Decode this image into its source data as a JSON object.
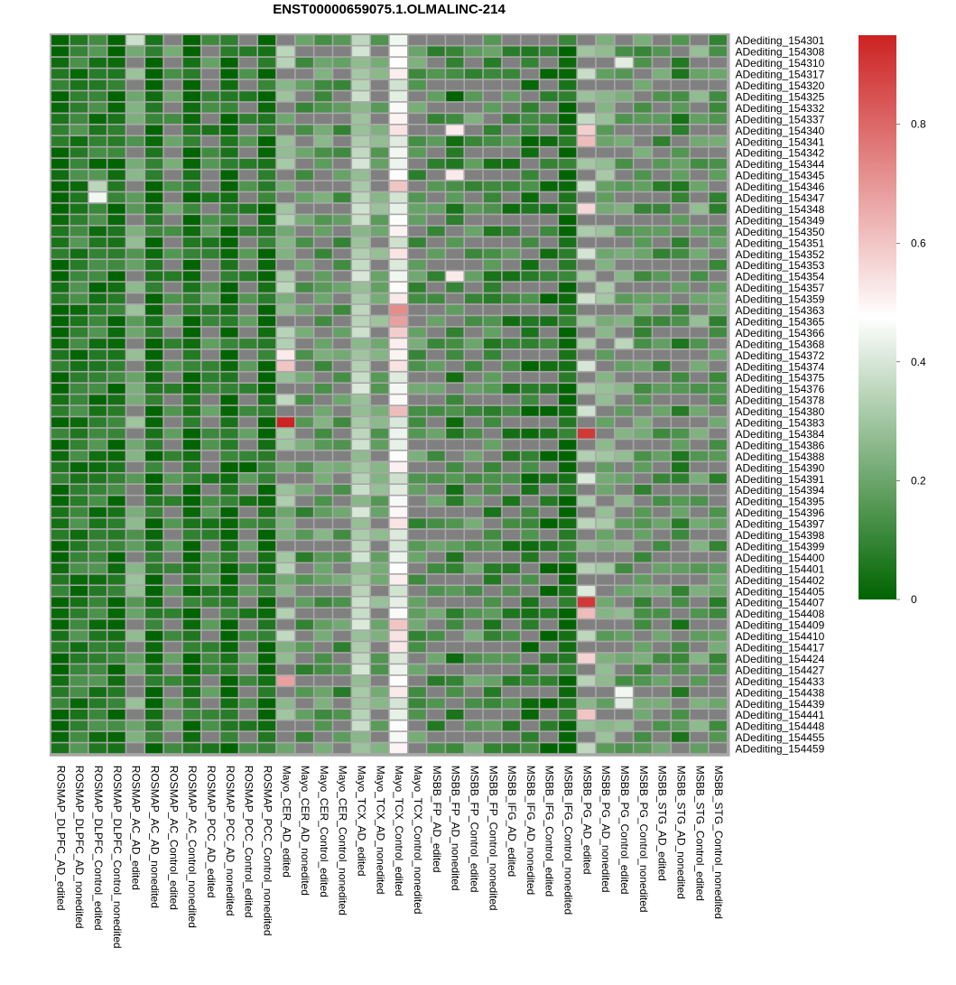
{
  "chart_data": {
    "type": "heatmap",
    "title": "ENST00000659075.1.OLMALINC-214",
    "columns": [
      "ROSMAP_DLPFC_AD_edited",
      "ROSMAP_DLPFC_AD_nonedited",
      "ROSMAP_DLPFC_Control_edited",
      "ROSMAP_DLPFC_Control_nonedited",
      "ROSMAP_AC_AD_edited",
      "ROSMAP_AC_AD_nonedited",
      "ROSMAP_AC_Control_edited",
      "ROSMAP_AC_Control_nonedited",
      "ROSMAP_PCC_AD_edited",
      "ROSMAP_PCC_AD_nonedited",
      "ROSMAP_PCC_Control_edited",
      "ROSMAP_PCC_Control_nonedited",
      "Mayo_CER_AD_edited",
      "Mayo_CER_AD_nonedited",
      "Mayo_CER_Control_edited",
      "Mayo_CER_Control_nonedited",
      "Mayo_TCX_AD_edited",
      "Mayo_TCX_AD_nonedited",
      "Mayo_TCX_Control_edited",
      "Mayo_TCX_Control_nonedited",
      "MSBB_FP_AD_edited",
      "MSBB_FP_AD_nonedited",
      "MSBB_FP_Control_edited",
      "MSBB_FP_Control_nonedited",
      "MSBB_IFG_AD_edited",
      "MSBB_IFG_AD_nonedited",
      "MSBB_IFG_Control_edited",
      "MSBB_IFG_Control_nonedited",
      "MSBB_PG_AD_edited",
      "MSBB_PG_AD_nonedited",
      "MSBB_PG_Control_edited",
      "MSBB_PG_Control_nonedited",
      "MSBB_STG_AD_edited",
      "MSBB_STG_AD_nonedited",
      "MSBB_STG_Control_edited",
      "MSBB_STG_Control_nonedited"
    ],
    "rows": [
      "ADediting_154301",
      "ADediting_154308",
      "ADediting_154310",
      "ADediting_154317",
      "ADediting_154320",
      "ADediting_154325",
      "ADediting_154332",
      "ADediting_154337",
      "ADediting_154340",
      "ADediting_154341",
      "ADediting_154342",
      "ADediting_154344",
      "ADediting_154345",
      "ADediting_154346",
      "ADediting_154347",
      "ADediting_154348",
      "ADediting_154349",
      "ADediting_154350",
      "ADediting_154351",
      "ADediting_154352",
      "ADediting_154353",
      "ADediting_154354",
      "ADediting_154357",
      "ADediting_154359",
      "ADediting_154363",
      "ADediting_154365",
      "ADediting_154366",
      "ADediting_154368",
      "ADediting_154372",
      "ADediting_154374",
      "ADediting_154375",
      "ADediting_154376",
      "ADediting_154378",
      "ADediting_154380",
      "ADediting_154383",
      "ADediting_154384",
      "ADediting_154386",
      "ADediting_154388",
      "ADediting_154390",
      "ADediting_154391",
      "ADediting_154394",
      "ADediting_154395",
      "ADediting_154396",
      "ADediting_154397",
      "ADediting_154398",
      "ADediting_154399",
      "ADediting_154400",
      "ADediting_154401",
      "ADediting_154402",
      "ADediting_154405",
      "ADediting_154407",
      "ADediting_154408",
      "ADediting_154409",
      "ADediting_154410",
      "ADediting_154417",
      "ADediting_154424",
      "ADediting_154427",
      "ADediting_154433",
      "ADediting_154438",
      "ADediting_154439",
      "ADediting_154441",
      "ADediting_154448",
      "ADediting_154455",
      "ADediting_154459"
    ],
    "na_color": "#808080",
    "color_scale": {
      "stops": [
        {
          "value": 0,
          "color": "#006400"
        },
        {
          "value": 0.475,
          "color": "#ffffff"
        },
        {
          "value": 0.95,
          "color": "#cc2222"
        }
      ]
    },
    "legend": {
      "position": "top-right",
      "ticks": [
        0,
        0.2,
        0.4,
        0.6,
        0.8
      ],
      "tick_labels": [
        "0",
        "0.2",
        "0.4",
        "0.6",
        "0.8"
      ]
    },
    "column_base_values": [
      0.03,
      0.08,
      0.08,
      0.05,
      0.22,
      0.03,
      0.15,
      0.03,
      0.12,
      0.03,
      0.12,
      0.03,
      0.28,
      0.15,
      0.18,
      0.15,
      0.33,
      0.22,
      0.46,
      0.16,
      0.14,
      0.1,
      0.16,
      0.12,
      0.1,
      0.07,
      0.04,
      0.03,
      0.33,
      0.24,
      0.2,
      0.16,
      0.15,
      0.12,
      0.2,
      0.15
    ],
    "column_na_every": [
      0,
      0,
      0,
      0,
      3,
      0,
      2,
      0,
      3,
      0,
      2,
      0,
      3,
      2,
      3,
      2,
      0,
      3,
      0,
      3,
      2,
      3,
      2,
      3,
      2,
      3,
      2,
      0,
      2,
      3,
      2,
      3,
      2,
      3,
      2,
      3
    ],
    "special_cells": [
      {
        "row": "ADediting_154383",
        "column": "Mayo_CER_AD_edited",
        "value": 0.95
      },
      {
        "row": "ADediting_154374",
        "column": "Mayo_CER_AD_edited",
        "value": 0.6
      },
      {
        "row": "ADediting_154372",
        "column": "Mayo_CER_AD_edited",
        "value": 0.52
      },
      {
        "row": "ADediting_154433",
        "column": "Mayo_CER_AD_edited",
        "value": 0.68
      },
      {
        "row": "ADediting_154363",
        "column": "Mayo_TCX_Control_edited",
        "value": 0.72
      },
      {
        "row": "ADediting_154365",
        "column": "Mayo_TCX_Control_edited",
        "value": 0.68
      },
      {
        "row": "ADediting_154366",
        "column": "Mayo_TCX_Control_edited",
        "value": 0.58
      },
      {
        "row": "ADediting_154346",
        "column": "Mayo_TCX_Control_edited",
        "value": 0.6
      },
      {
        "row": "ADediting_154380",
        "column": "Mayo_TCX_Control_edited",
        "value": 0.62
      },
      {
        "row": "ADediting_154409",
        "column": "Mayo_TCX_Control_edited",
        "value": 0.6
      },
      {
        "row": "ADediting_154384",
        "column": "MSBB_PG_AD_edited",
        "value": 0.9
      },
      {
        "row": "ADediting_154407",
        "column": "MSBB_PG_AD_edited",
        "value": 0.9
      },
      {
        "row": "ADediting_154341",
        "column": "MSBB_PG_AD_edited",
        "value": 0.62
      },
      {
        "row": "ADediting_154408",
        "column": "MSBB_PG_AD_edited",
        "value": 0.62
      },
      {
        "row": "ADediting_154340",
        "column": "MSBB_PG_AD_edited",
        "value": 0.58
      },
      {
        "row": "ADediting_154348",
        "column": "MSBB_PG_AD_edited",
        "value": 0.56
      },
      {
        "row": "ADediting_154424",
        "column": "MSBB_PG_AD_edited",
        "value": 0.57
      },
      {
        "row": "ADediting_154441",
        "column": "MSBB_PG_AD_edited",
        "value": 0.6
      },
      {
        "row": "ADediting_154340",
        "column": "MSBB_FP_AD_nonedited",
        "value": 0.52
      },
      {
        "row": "ADediting_154345",
        "column": "MSBB_FP_AD_nonedited",
        "value": 0.52
      },
      {
        "row": "ADediting_154354",
        "column": "MSBB_FP_AD_nonedited",
        "value": 0.52
      },
      {
        "row": "ADediting_154325",
        "column": "MSBB_FP_AD_nonedited",
        "value": 0.0
      },
      {
        "row": "ADediting_154346",
        "column": "ROSMAP_DLPFC_AD_edited",
        "value": 0.0
      },
      {
        "row": "ADediting_154347",
        "column": "ROSMAP_DLPFC_AD_edited",
        "value": 0.0
      },
      {
        "row": "ADediting_154347",
        "column": "ROSMAP_DLPFC_Control_edited",
        "value": 0.45
      },
      {
        "row": "ADediting_154346",
        "column": "ROSMAP_DLPFC_Control_edited",
        "value": 0.35
      },
      {
        "row": "ADediting_154301",
        "column": "ROSMAP_AC_AD_edited",
        "value": 0.38
      },
      {
        "row": "ADediting_154390",
        "column": "ROSMAP_PCC_Control_edited",
        "value": 0.0
      },
      {
        "row": "ADediting_154310",
        "column": "MSBB_PG_Control_edited",
        "value": 0.42
      },
      {
        "row": "ADediting_154368",
        "column": "MSBB_PG_Control_edited",
        "value": 0.35
      },
      {
        "row": "ADediting_154438",
        "column": "MSBB_PG_Control_edited",
        "value": 0.45
      },
      {
        "row": "ADediting_154439",
        "column": "MSBB_PG_Control_edited",
        "value": 0.42
      }
    ]
  }
}
